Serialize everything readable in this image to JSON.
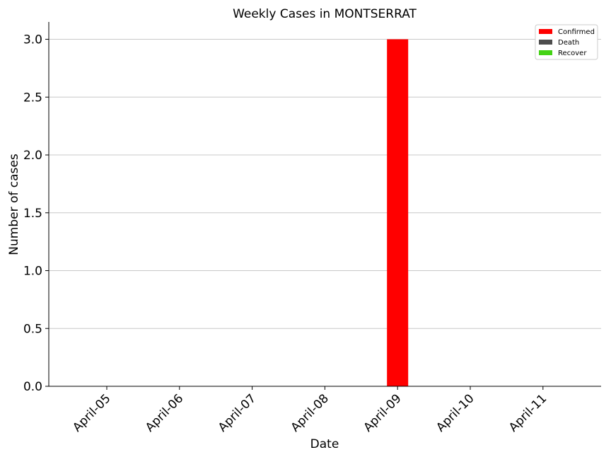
{
  "chart_data": {
    "type": "bar",
    "title": "Weekly Cases in MONTSERRAT",
    "xlabel": "Date",
    "ylabel": "Number of cases",
    "categories": [
      "April-05",
      "April-06",
      "April-07",
      "April-08",
      "April-09",
      "April-10",
      "April-11"
    ],
    "series": [
      {
        "name": "Confirmed",
        "color": "#ff0000",
        "values": [
          0,
          0,
          0,
          0,
          3,
          0,
          0
        ]
      },
      {
        "name": "Death",
        "color": "#4d4d4d",
        "values": [
          0,
          0,
          0,
          0,
          0,
          0,
          0
        ]
      },
      {
        "name": "Recover",
        "color": "#44d315",
        "values": [
          0,
          0,
          0,
          0,
          0,
          0,
          0
        ]
      }
    ],
    "ylim": [
      0,
      3.15
    ],
    "yticks": [
      "0.0",
      "0.5",
      "1.0",
      "1.5",
      "2.0",
      "2.5",
      "3.0"
    ],
    "grid": "horizontal",
    "legend_position": "top-right"
  }
}
